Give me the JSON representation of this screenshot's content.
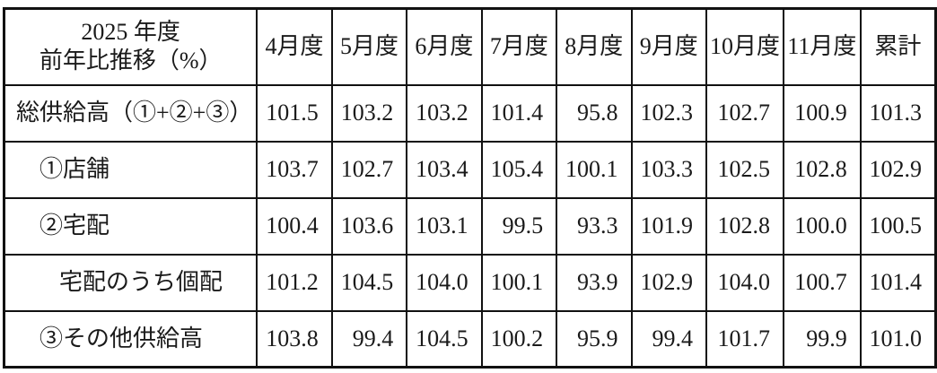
{
  "chart_data": {
    "type": "table",
    "title": "2025年度 前年比推移（%）",
    "corner_line1": "2025 年度",
    "corner_line2": "前年比推移（%）",
    "columns": [
      "4月度",
      "5月度",
      "6月度",
      "7月度",
      "8月度",
      "9月度",
      "10月度",
      "11月度",
      "累計"
    ],
    "rows": [
      {
        "label": "総供給高（①+②+③）",
        "indent": 0,
        "values": [
          "101.5",
          "103.2",
          "103.2",
          "101.4",
          "95.8",
          "102.3",
          "102.7",
          "100.9",
          "101.3"
        ]
      },
      {
        "label": "①店舗",
        "indent": 1,
        "values": [
          "103.7",
          "102.7",
          "103.4",
          "105.4",
          "100.1",
          "103.3",
          "102.5",
          "102.8",
          "102.9"
        ]
      },
      {
        "label": "②宅配",
        "indent": 1,
        "values": [
          "100.4",
          "103.6",
          "103.1",
          "99.5",
          "93.3",
          "101.9",
          "102.8",
          "100.0",
          "100.5"
        ]
      },
      {
        "label": "宅配のうち個配",
        "indent": 2,
        "values": [
          "101.2",
          "104.5",
          "104.0",
          "100.1",
          "93.9",
          "102.9",
          "104.0",
          "100.7",
          "101.4"
        ]
      },
      {
        "label": "③その他供給高",
        "indent": 1,
        "values": [
          "103.8",
          "99.4",
          "104.5",
          "100.2",
          "95.9",
          "99.4",
          "101.7",
          "99.9",
          "101.0"
        ]
      }
    ],
    "layout": {
      "grid": true,
      "unit": "percent"
    },
    "colors": {
      "border": "#111111",
      "text": "#1a1a1a",
      "background": "#ffffff"
    }
  }
}
